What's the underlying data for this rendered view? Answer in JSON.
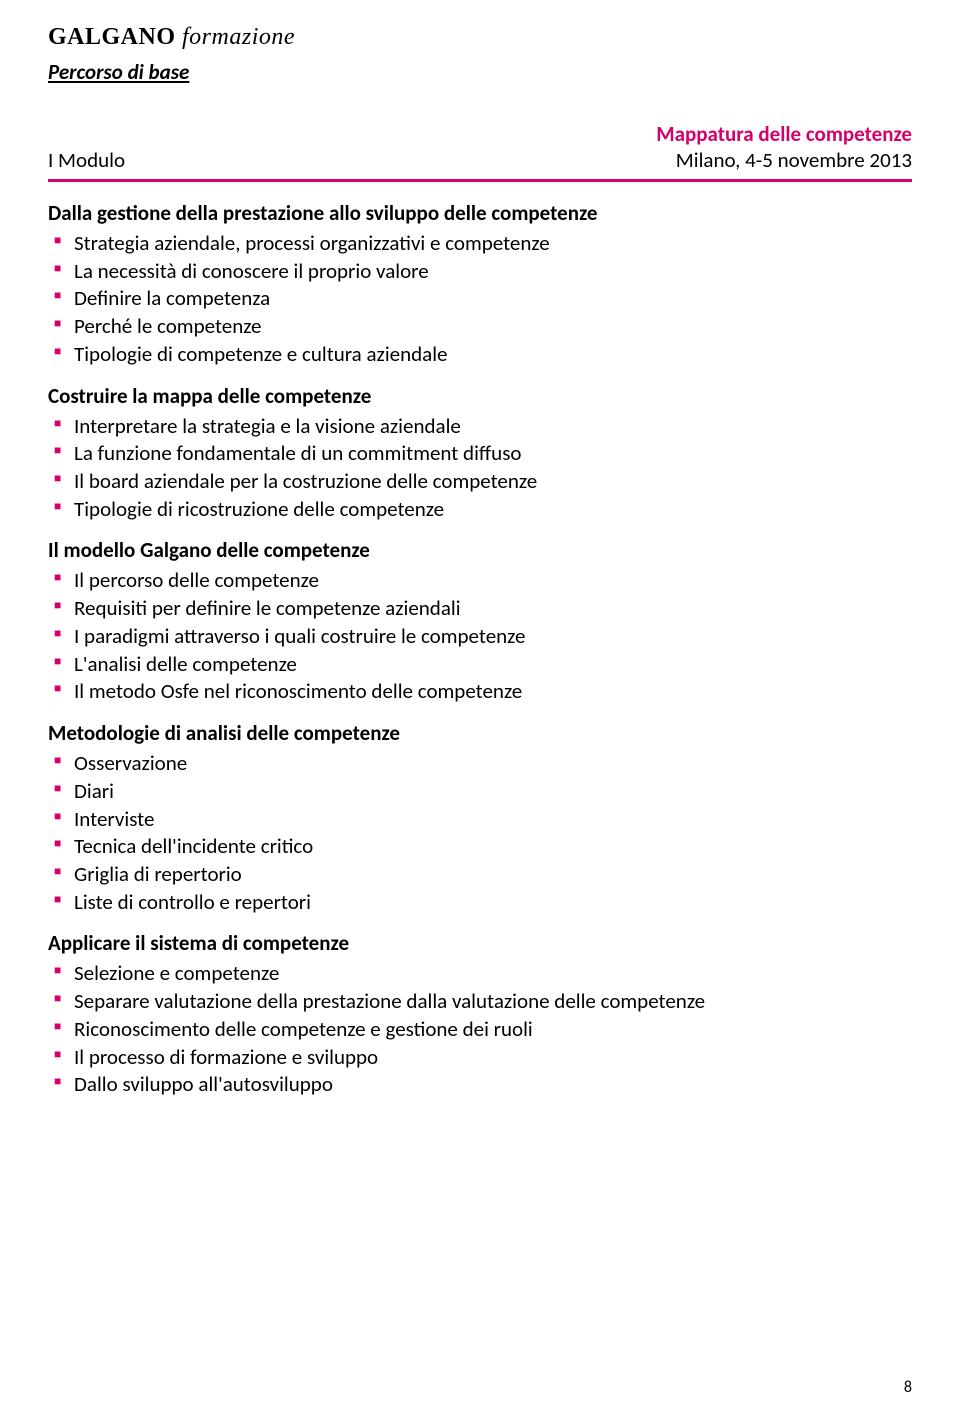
{
  "colors": {
    "accent": "#d6006c",
    "text": "#000000",
    "background": "#ffffff"
  },
  "typography": {
    "body_fontsize_pt": 16,
    "heading_fontsize_pt": 16,
    "heading_weight": 700,
    "bullet_color": "#d6006c"
  },
  "header": {
    "logo_bold": "GALGANO",
    "logo_italic": " formazione",
    "subtitle": "Percorso di base"
  },
  "module": {
    "left": "I Modulo",
    "title": "Mappatura delle competenze",
    "date": "Milano, 4-5 novembre 2013"
  },
  "sections": [
    {
      "heading": "Dalla gestione della prestazione allo sviluppo delle competenze",
      "items": [
        "Strategia aziendale, processi organizzativi e competenze",
        "La necessità di conoscere il proprio valore",
        "Definire la competenza",
        "Perché le competenze",
        "Tipologie di competenze e cultura aziendale"
      ]
    },
    {
      "heading": "Costruire la mappa delle competenze",
      "items": [
        "Interpretare la strategia e la visione aziendale",
        "La funzione fondamentale di un commitment diffuso",
        "Il board aziendale per la costruzione delle competenze",
        "Tipologie di ricostruzione delle competenze"
      ]
    },
    {
      "heading": "Il modello Galgano delle competenze",
      "items": [
        "Il percorso delle competenze",
        "Requisiti per definire le competenze aziendali",
        "I paradigmi attraverso i quali costruire le competenze",
        "L'analisi delle competenze",
        "Il metodo Osfe nel riconoscimento delle competenze"
      ]
    },
    {
      "heading": "Metodologie di analisi delle competenze",
      "items": [
        "Osservazione",
        "Diari",
        "Interviste",
        "Tecnica dell'incidente critico",
        "Griglia di repertorio",
        "Liste di controllo e repertori"
      ]
    },
    {
      "heading": "Applicare il sistema di competenze",
      "items": [
        "Selezione e competenze",
        "Separare valutazione della prestazione dalla valutazione delle competenze",
        "Riconoscimento delle competenze e gestione dei ruoli",
        "Il processo di formazione e sviluppo",
        "Dallo sviluppo all'autosviluppo"
      ]
    }
  ],
  "page_number": "8"
}
